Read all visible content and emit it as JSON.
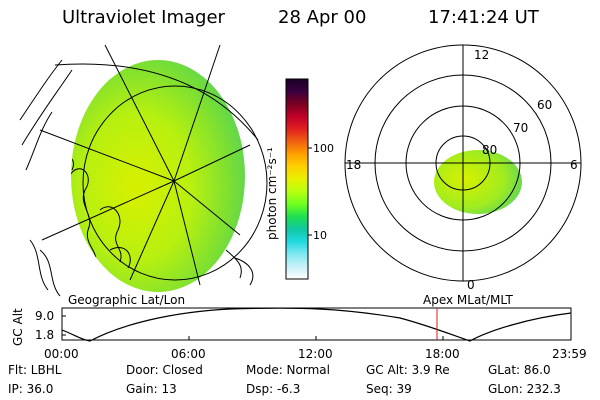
{
  "header": {
    "instrument": "Ultraviolet Imager",
    "date": "28 Apr 00",
    "time": "17:41:24 UT"
  },
  "colorbar": {
    "unit_label": "photon cm⁻²s⁻¹",
    "ticks": [
      "100",
      "10"
    ],
    "colors": [
      "#1a0026",
      "#3a0040",
      "#7a0020",
      "#c0002a",
      "#e02020",
      "#f06010",
      "#ffa000",
      "#ffd000",
      "#e8f000",
      "#b8ff10",
      "#70ff20",
      "#20e050",
      "#10c8a0",
      "#20d8e0",
      "#80e8f0",
      "#c8f0f8",
      "#ffffff"
    ]
  },
  "left_panel": {
    "label": "Geographic Lat/Lon"
  },
  "right_panel": {
    "label": "Apex MLat/MLT",
    "mlt_labels": {
      "top": "12",
      "left": "18",
      "right": "6",
      "bottom": "0"
    },
    "lat_labels": [
      "60",
      "70",
      "80"
    ]
  },
  "timeline": {
    "axis_label": "GC Alt",
    "y_ticks": [
      "9.0",
      "1.8"
    ],
    "x_ticks": [
      "00:00",
      "06:00",
      "12:00",
      "18:00",
      "23:59"
    ],
    "marker_color": "#d02020"
  },
  "info": {
    "filter": "Flt: LBHL",
    "door": "Door: Closed",
    "mode": "Mode: Normal",
    "gc_alt": "GC Alt: 3.9 Re",
    "glat": "GLat:  86.0",
    "ip": "IP: 36.0",
    "gain": "Gain: 13",
    "dsp": "Dsp:    -6.3",
    "seq": "Seq: 39",
    "glon": "GLon: 232.3"
  }
}
